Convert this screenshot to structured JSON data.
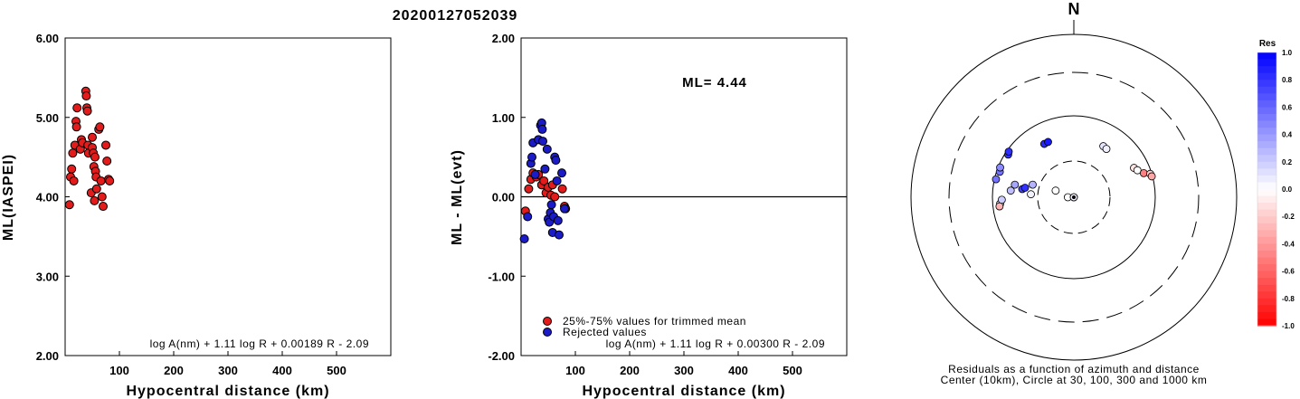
{
  "title": "20200127052039",
  "chart_data": [
    {
      "type": "scatter",
      "ylabel": "ML(IASPEI)",
      "xlabel": "Hypocentral distance (km)",
      "xticks": [
        "100",
        "200",
        "300",
        "400",
        "500"
      ],
      "yticks": [
        "2.00",
        "3.00",
        "4.00",
        "5.00",
        "6.00"
      ],
      "xlim": [
        0,
        600
      ],
      "ylim": [
        2.0,
        6.0
      ],
      "formula": "log A(nm) + 1.11 log R + 0.00189 R - 2.09",
      "series": [
        {
          "color": "#e41b1b",
          "points": [
            [
              8,
              3.9
            ],
            [
              10,
              4.25
            ],
            [
              12,
              4.35
            ],
            [
              14,
              4.55
            ],
            [
              16,
              4.2
            ],
            [
              18,
              4.65
            ],
            [
              20,
              4.95
            ],
            [
              21,
              4.88
            ],
            [
              22,
              5.12
            ],
            [
              28,
              4.6
            ],
            [
              30,
              4.72
            ],
            [
              32,
              4.68
            ],
            [
              38,
              5.33
            ],
            [
              39,
              5.27
            ],
            [
              40,
              5.12
            ],
            [
              41,
              5.08
            ],
            [
              42,
              4.65
            ],
            [
              43,
              4.55
            ],
            [
              48,
              4.05
            ],
            [
              50,
              4.75
            ],
            [
              50,
              4.62
            ],
            [
              52,
              4.55
            ],
            [
              53,
              4.38
            ],
            [
              54,
              3.95
            ],
            [
              55,
              4.5
            ],
            [
              56,
              4.32
            ],
            [
              57,
              4.25
            ],
            [
              58,
              4.1
            ],
            [
              62,
              4.85
            ],
            [
              64,
              4.88
            ],
            [
              66,
              4.2
            ],
            [
              68,
              4.0
            ],
            [
              70,
              3.88
            ],
            [
              75,
              4.65
            ],
            [
              77,
              4.45
            ],
            [
              80,
              4.22
            ],
            [
              82,
              4.2
            ]
          ]
        }
      ]
    },
    {
      "type": "scatter",
      "ylabel": "ML - ML(evt)",
      "xlabel": "Hypocentral distance (km)",
      "xticks": [
        "100",
        "200",
        "300",
        "400",
        "500"
      ],
      "yticks": [
        "-2.00",
        "-1.00",
        "0.00",
        "1.00",
        "2.00"
      ],
      "xlim": [
        0,
        600
      ],
      "ylim": [
        -2.0,
        2.0
      ],
      "annotation": "ML= 4.44",
      "formula": "log A(nm) + 1.11 log R + 0.00300 R - 2.09",
      "legend": [
        "25%-75% values for trimmed mean",
        "Rejected values"
      ],
      "series": [
        {
          "name": "25%-75% values for trimmed mean",
          "color": "#e41b1b",
          "points": [
            [
              8,
              -0.18
            ],
            [
              14,
              0.1
            ],
            [
              18,
              0.22
            ],
            [
              22,
              0.3
            ],
            [
              28,
              0.25
            ],
            [
              32,
              0.28
            ],
            [
              38,
              0.15
            ],
            [
              42,
              0.2
            ],
            [
              46,
              0.05
            ],
            [
              50,
              0.12
            ],
            [
              55,
              0.02
            ],
            [
              58,
              0.15
            ],
            [
              62,
              0.0
            ],
            [
              76,
              0.1
            ],
            [
              80,
              -0.12
            ],
            [
              82,
              -0.15
            ]
          ]
        },
        {
          "name": "Rejected values",
          "color": "#1b1bc8",
          "points": [
            [
              6,
              -0.53
            ],
            [
              12,
              -0.25
            ],
            [
              18,
              0.42
            ],
            [
              20,
              0.5
            ],
            [
              22,
              0.68
            ],
            [
              26,
              0.28
            ],
            [
              32,
              0.72
            ],
            [
              36,
              0.9
            ],
            [
              38,
              0.93
            ],
            [
              39,
              0.85
            ],
            [
              40,
              0.7
            ],
            [
              44,
              0.35
            ],
            [
              48,
              0.6
            ],
            [
              50,
              -0.28
            ],
            [
              52,
              -0.32
            ],
            [
              54,
              -0.2
            ],
            [
              56,
              -0.1
            ],
            [
              58,
              -0.45
            ],
            [
              60,
              -0.25
            ],
            [
              62,
              0.5
            ],
            [
              64,
              0.46
            ],
            [
              66,
              0.2
            ],
            [
              68,
              -0.3
            ],
            [
              70,
              -0.48
            ],
            [
              75,
              0.3
            ],
            [
              80,
              -0.15
            ]
          ]
        }
      ]
    },
    {
      "type": "polar-scatter",
      "north_label": "N",
      "caption_line1": "Residuals as a function of azimuth and distance",
      "caption_line2": "Center (10km), Circle at 30, 100, 300 and 1000 km",
      "rings_km": [
        30,
        100,
        300,
        1000
      ],
      "center_km": 10,
      "colorbar": {
        "title": "Res",
        "min": -1.0,
        "max": 1.0,
        "ticks": [
          "1.0",
          "0.8",
          "0.6",
          "0.4",
          "0.2",
          "0.0",
          "-0.2",
          "-0.4",
          "-0.6",
          "-0.8",
          "-1.0"
        ]
      },
      "points": [
        {
          "az": 289,
          "dist": 92,
          "res": 0.55
        },
        {
          "az": 292,
          "dist": 95,
          "res": 0.45
        },
        {
          "az": 283,
          "dist": 96,
          "res": 0.55
        },
        {
          "az": 303,
          "dist": 92,
          "res": 0.8
        },
        {
          "az": 305,
          "dist": 95,
          "res": 0.82
        },
        {
          "az": 265,
          "dist": 82,
          "res": 0.1
        },
        {
          "az": 263,
          "dist": 84,
          "res": -0.3
        },
        {
          "az": 268,
          "dist": 78,
          "res": 0.2
        },
        {
          "az": 276,
          "dist": 62,
          "res": 0.25
        },
        {
          "az": 282,
          "dist": 57,
          "res": 0.35
        },
        {
          "az": 279,
          "dist": 46,
          "res": 0.75
        },
        {
          "az": 281,
          "dist": 43,
          "res": 0.8
        },
        {
          "az": 287,
          "dist": 36,
          "res": 0.3
        },
        {
          "az": 274,
          "dist": 36,
          "res": 0.05
        },
        {
          "az": 331,
          "dist": 58,
          "res": 0.85
        },
        {
          "az": 335,
          "dist": 58,
          "res": 0.9
        },
        {
          "az": 270,
          "dist": 12,
          "res": 0.0
        },
        {
          "az": 285,
          "dist": 10,
          "res": -0.05
        },
        {
          "az": 305,
          "dist": 10,
          "res": 0.05
        },
        {
          "az": 290,
          "dist": 18,
          "res": 0.0
        },
        {
          "az": 30,
          "dist": 55,
          "res": 0.1
        },
        {
          "az": 34,
          "dist": 54,
          "res": 0.05
        },
        {
          "az": 64,
          "dist": 68,
          "res": -0.1
        },
        {
          "az": 67,
          "dist": 72,
          "res": 0.0
        },
        {
          "az": 71,
          "dist": 82,
          "res": -0.5
        },
        {
          "az": 73,
          "dist": 96,
          "res": -0.2
        },
        {
          "az": 75,
          "dist": 98,
          "res": -0.35
        }
      ]
    }
  ]
}
